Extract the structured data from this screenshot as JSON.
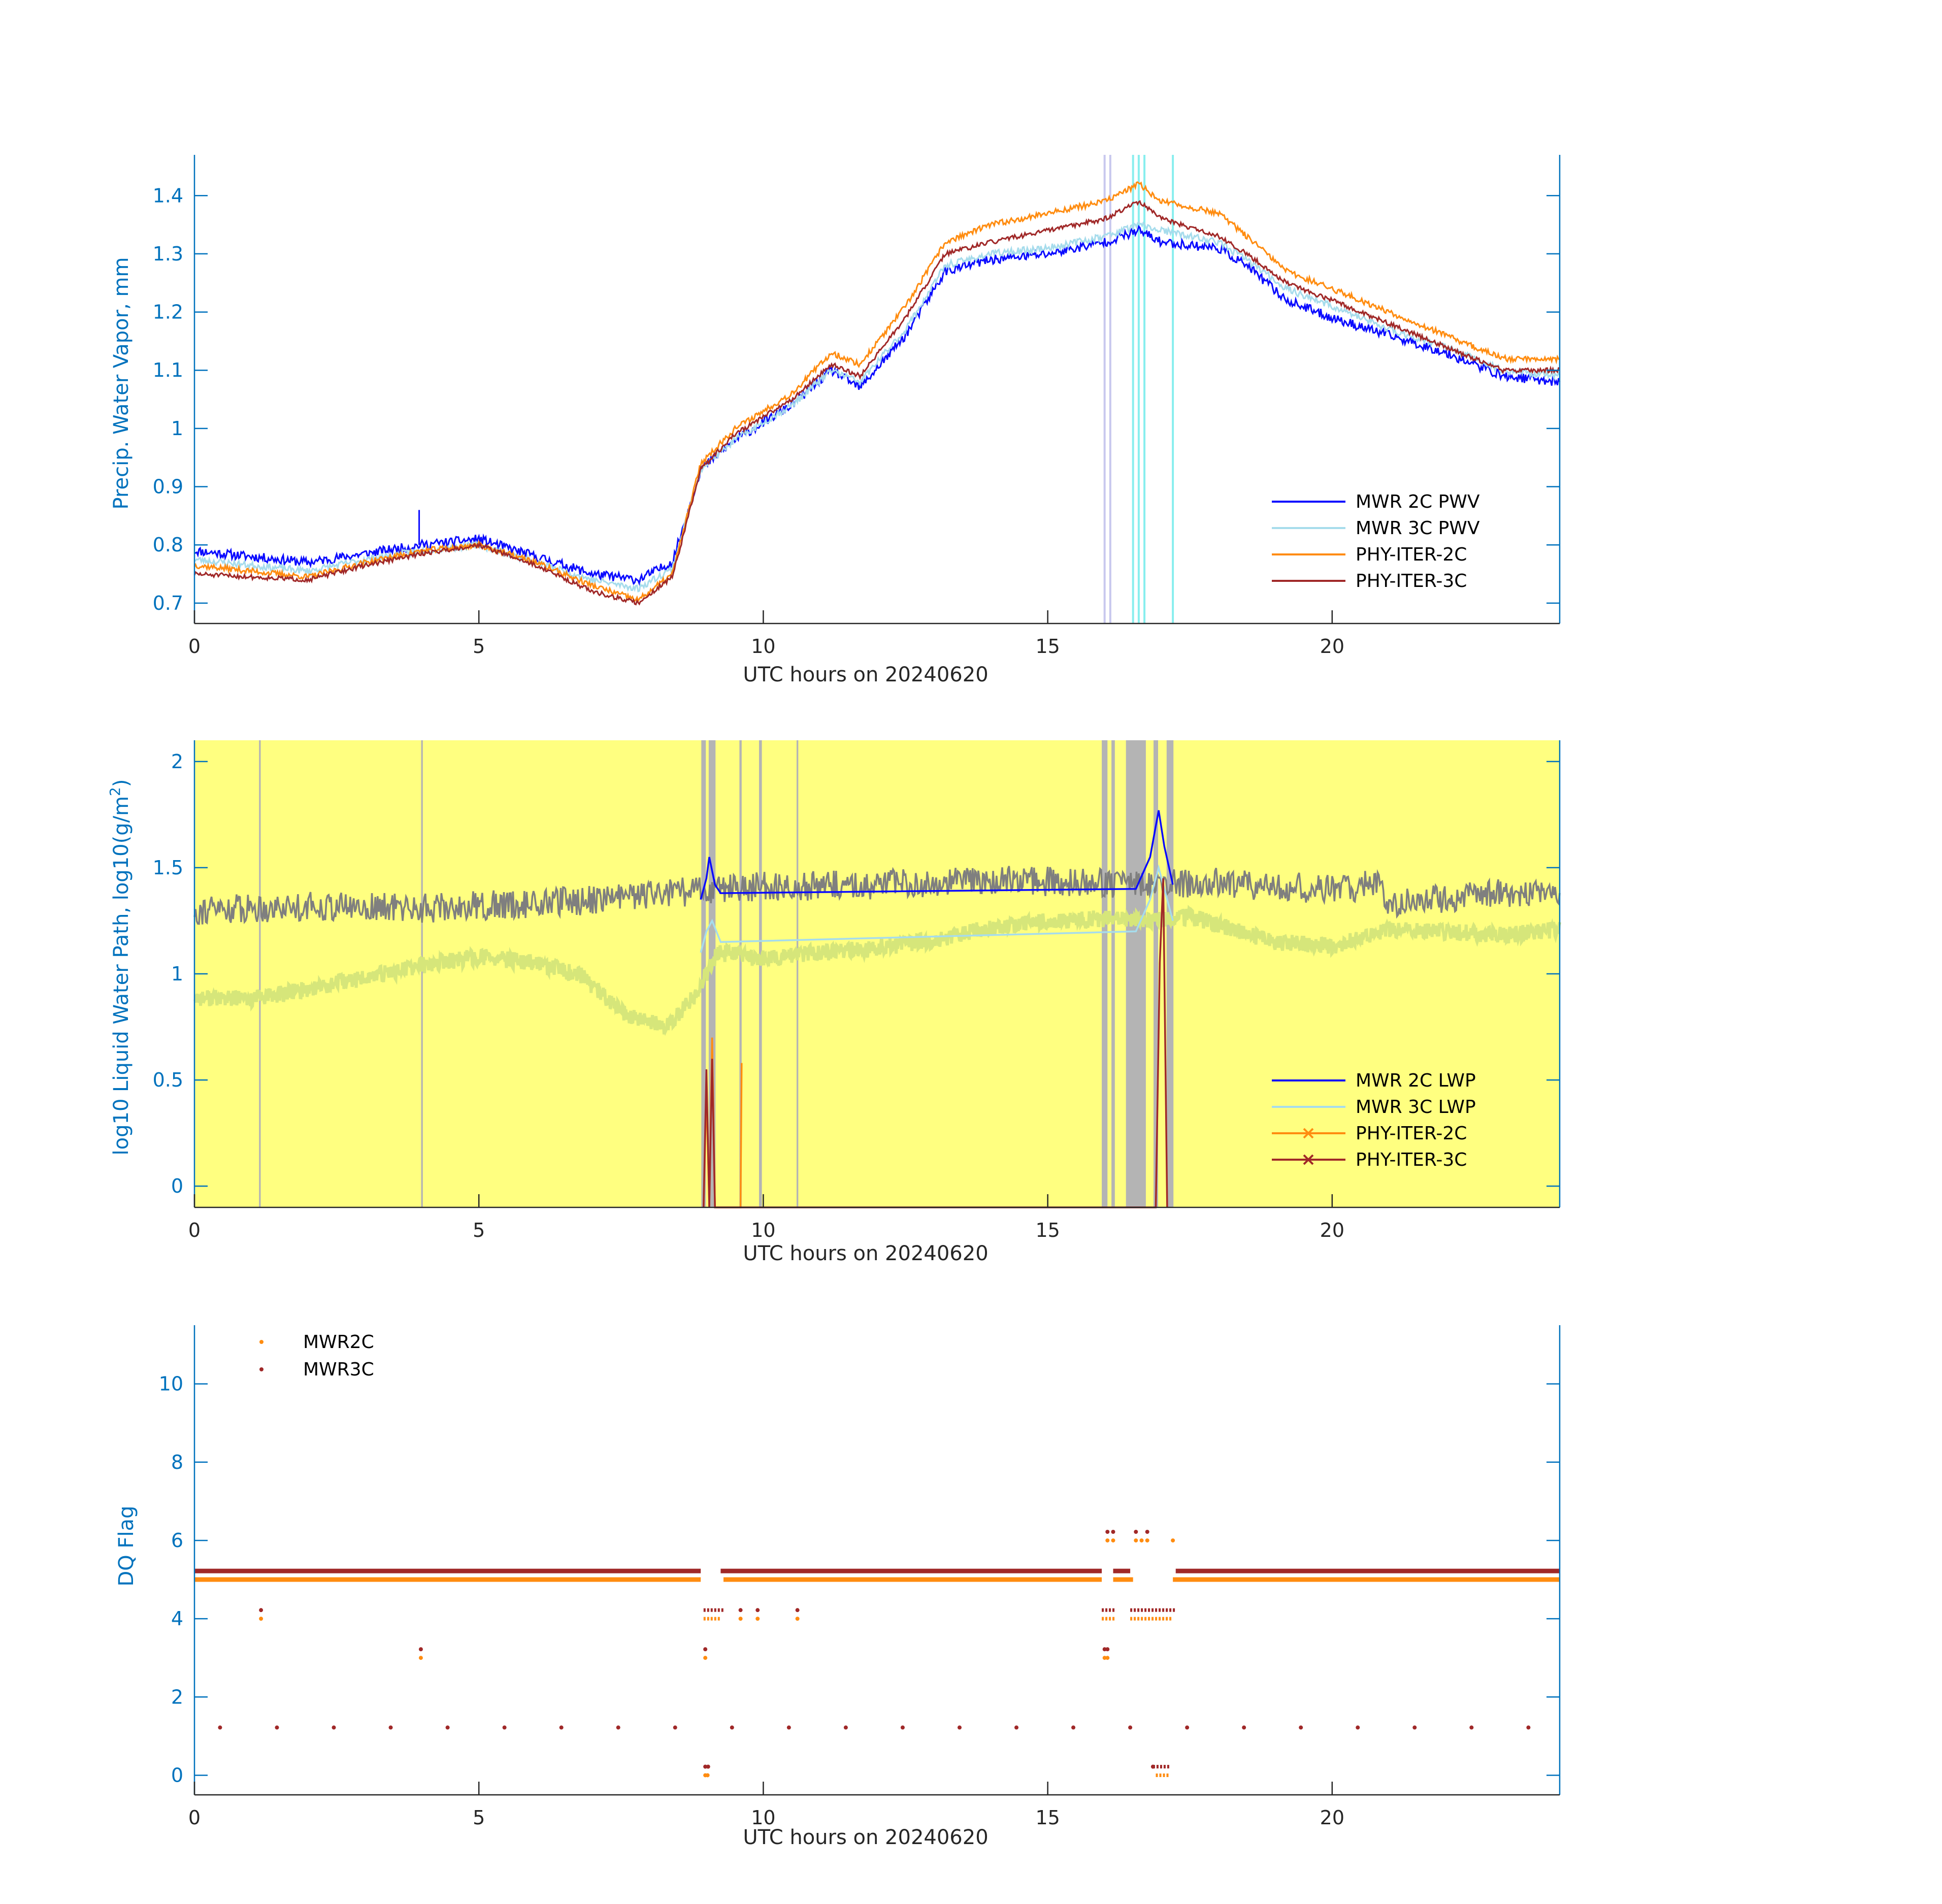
{
  "colors": {
    "mwr2c_pwv": "#0a0aff",
    "mwr3c_pwv": "#a6dcec",
    "phy2c": "#ff8c10",
    "phy3c": "#a02828",
    "lwp_raw": "#7f7f7f",
    "lwp_smooth": "#d6e67a",
    "lwp_bg": "#ffff80",
    "flag_gray": "#b4b4b4",
    "flag_cyan": "#88eeee",
    "flag_lavender": "#c8c8ee",
    "axis": "#0072bd",
    "xaxis": "#262626"
  },
  "chart_data": [
    {
      "type": "line",
      "name_key": "pwv",
      "xlabel": "UTC hours on 20240620",
      "ylabel": "Precip. Water Vapor, mm",
      "xlim": [
        0,
        24
      ],
      "ylim": [
        0.665,
        1.47
      ],
      "xticks": [
        0,
        5,
        10,
        15,
        20
      ],
      "yticks": [
        0.7,
        0.8,
        0.9,
        1,
        1.1,
        1.2,
        1.3,
        1.4
      ],
      "ytick_labels": [
        "0.7",
        "0.8",
        "0.9",
        "1",
        "1.1",
        "1.2",
        "1.3",
        "1.4"
      ],
      "grid": false,
      "legend_position": "bottom-right",
      "vertical_flags": [
        {
          "x": 16.0,
          "color": "flag_lavender"
        },
        {
          "x": 16.1,
          "color": "flag_lavender"
        },
        {
          "x": 16.5,
          "color": "flag_cyan"
        },
        {
          "x": 16.6,
          "color": "flag_cyan"
        },
        {
          "x": 16.7,
          "color": "flag_cyan"
        },
        {
          "x": 17.2,
          "color": "flag_cyan"
        }
      ],
      "series": [
        {
          "name": "MWR 2C PWV",
          "color": "mwr2c_pwv",
          "noise": 0.008,
          "x": [
            0,
            1,
            2,
            3,
            4,
            5,
            6,
            7,
            7.8,
            8.4,
            8.9,
            9.5,
            10.5,
            11.2,
            11.7,
            12.5,
            13.2,
            14,
            15,
            16,
            16.6,
            17,
            18,
            18.5,
            19.2,
            20,
            21,
            22,
            23,
            24
          ],
          "y": [
            0.79,
            0.78,
            0.77,
            0.785,
            0.8,
            0.81,
            0.78,
            0.75,
            0.74,
            0.77,
            0.93,
            0.98,
            1.04,
            1.1,
            1.07,
            1.16,
            1.27,
            1.29,
            1.3,
            1.32,
            1.34,
            1.32,
            1.31,
            1.28,
            1.22,
            1.19,
            1.16,
            1.13,
            1.09,
            1.08
          ]
        },
        {
          "name": "MWR 3C PWV",
          "color": "mwr3c_pwv",
          "noise": 0.006,
          "x": [
            0,
            1,
            2,
            3,
            4,
            5,
            6,
            7,
            7.8,
            8.4,
            8.9,
            9.5,
            10.5,
            11.2,
            11.7,
            12.5,
            13.2,
            14,
            15,
            16,
            16.6,
            17,
            18,
            18.5,
            19.2,
            20,
            21,
            22,
            23,
            24
          ],
          "y": [
            0.775,
            0.765,
            0.755,
            0.775,
            0.79,
            0.8,
            0.77,
            0.74,
            0.725,
            0.76,
            0.93,
            0.98,
            1.04,
            1.1,
            1.08,
            1.17,
            1.28,
            1.3,
            1.31,
            1.33,
            1.35,
            1.34,
            1.32,
            1.29,
            1.24,
            1.21,
            1.17,
            1.14,
            1.1,
            1.09
          ]
        },
        {
          "name": "PHY-ITER-2C",
          "color": "phy2c",
          "noise": 0.005,
          "x": [
            0,
            1,
            2,
            3,
            4,
            5,
            6,
            7,
            7.8,
            8.4,
            8.9,
            9.5,
            10.5,
            11.2,
            11.7,
            12.5,
            13.2,
            14,
            15,
            16,
            16.6,
            17,
            18,
            18.5,
            19.2,
            20,
            21,
            22,
            23,
            24
          ],
          "y": [
            0.765,
            0.755,
            0.745,
            0.77,
            0.79,
            0.8,
            0.77,
            0.73,
            0.705,
            0.75,
            0.94,
            1.0,
            1.06,
            1.13,
            1.11,
            1.21,
            1.32,
            1.35,
            1.37,
            1.39,
            1.42,
            1.39,
            1.37,
            1.33,
            1.27,
            1.24,
            1.2,
            1.16,
            1.12,
            1.12
          ]
        },
        {
          "name": "PHY-ITER-3C",
          "color": "phy3c",
          "noise": 0.004,
          "x": [
            0,
            1,
            2,
            3,
            4,
            5,
            6,
            7,
            7.8,
            8.4,
            8.9,
            9.5,
            10.5,
            11.2,
            11.7,
            12.5,
            13.2,
            14,
            15,
            16,
            16.6,
            17,
            18,
            18.5,
            19.2,
            20,
            21,
            22,
            23,
            24
          ],
          "y": [
            0.75,
            0.745,
            0.74,
            0.765,
            0.785,
            0.8,
            0.765,
            0.72,
            0.7,
            0.745,
            0.93,
            0.99,
            1.05,
            1.11,
            1.09,
            1.19,
            1.3,
            1.32,
            1.34,
            1.36,
            1.39,
            1.36,
            1.33,
            1.3,
            1.25,
            1.22,
            1.18,
            1.14,
            1.1,
            1.1
          ]
        }
      ]
    },
    {
      "type": "line",
      "name_key": "lwp",
      "xlabel": "UTC hours on 20240620",
      "ylabel": "log10 Liquid Water Path, log10(g/m",
      "ylabel_sup": "2",
      "ylabel_tail": ")",
      "xlim": [
        0,
        24
      ],
      "ylim": [
        -0.1,
        2.1
      ],
      "xticks": [
        0,
        5,
        10,
        15,
        20
      ],
      "yticks": [
        0,
        0.5,
        1,
        1.5,
        2
      ],
      "ytick_labels": [
        "0",
        "0.5",
        "1",
        "1.5",
        "2"
      ],
      "grid": false,
      "legend_position": "bottom-right",
      "vertical_flags": [
        {
          "x": 1.15,
          "color": "flag_gray",
          "w": 0.03
        },
        {
          "x": 4.0,
          "color": "flag_gray",
          "w": 0.03
        },
        {
          "x": 8.95,
          "color": "flag_gray",
          "w": 0.08
        },
        {
          "x": 9.1,
          "color": "flag_gray",
          "w": 0.12
        },
        {
          "x": 9.6,
          "color": "flag_gray",
          "w": 0.04
        },
        {
          "x": 9.95,
          "color": "flag_gray",
          "w": 0.05
        },
        {
          "x": 10.6,
          "color": "flag_gray",
          "w": 0.03
        },
        {
          "x": 16.0,
          "color": "flag_gray",
          "w": 0.1
        },
        {
          "x": 16.15,
          "color": "flag_gray",
          "w": 0.06
        },
        {
          "x": 16.55,
          "color": "flag_gray",
          "w": 0.35
        },
        {
          "x": 16.9,
          "color": "flag_gray",
          "w": 0.08
        },
        {
          "x": 17.15,
          "color": "flag_gray",
          "w": 0.12
        }
      ],
      "series": [
        {
          "name": "MWR 2C LWP",
          "color": "mwr2c_pwv",
          "x": [
            8.9,
            9.0,
            9.05,
            9.15,
            9.25,
            16.55,
            16.8,
            16.95,
            17.05,
            17.2
          ],
          "y": [
            1.35,
            1.45,
            1.55,
            1.42,
            1.38,
            1.4,
            1.55,
            1.77,
            1.6,
            1.42
          ]
        },
        {
          "name": "MWR 3C LWP",
          "color": "mwr3c_pwv",
          "x": [
            8.9,
            9.0,
            9.1,
            9.25,
            16.55,
            16.8,
            16.95,
            17.05,
            17.2
          ],
          "y": [
            1.1,
            1.2,
            1.25,
            1.15,
            1.2,
            1.35,
            1.5,
            1.4,
            1.25
          ]
        },
        {
          "name": "PHY-ITER-2C",
          "color": "phy2c",
          "marker": "x",
          "x": [
            8.95,
            9.0,
            9.05,
            9.1,
            9.15,
            9.6,
            9.62
          ],
          "y": [
            -0.1,
            0.45,
            -0.1,
            0.7,
            -0.1,
            -0.1,
            0.58
          ]
        },
        {
          "name": "PHY-ITER-3C",
          "color": "phy3c",
          "marker": "x",
          "x": [
            8.95,
            9.0,
            9.05,
            9.1,
            9.15,
            16.9,
            16.97,
            17.03,
            17.1
          ],
          "y": [
            -0.1,
            0.55,
            -0.1,
            0.6,
            -0.1,
            -0.1,
            1.05,
            1.45,
            -0.1
          ]
        }
      ],
      "background_series": [
        {
          "role": "raw",
          "color": "lwp_raw",
          "noise": 0.07,
          "x": [
            0,
            2,
            4,
            6,
            7.5,
            8.5,
            9,
            10,
            12,
            14,
            16,
            17,
            18,
            19,
            20,
            20.8,
            21,
            22,
            23,
            24
          ],
          "y": [
            1.3,
            1.32,
            1.31,
            1.33,
            1.36,
            1.38,
            1.4,
            1.41,
            1.42,
            1.44,
            1.43,
            1.42,
            1.43,
            1.41,
            1.4,
            1.42,
            1.33,
            1.36,
            1.38,
            1.39
          ]
        },
        {
          "role": "smooth",
          "color": "lwp_smooth",
          "noise": 0.04,
          "x": [
            0,
            1,
            2,
            3,
            4,
            5,
            6,
            6.8,
            7.6,
            8.3,
            8.8,
            9.2,
            10,
            11,
            12,
            13,
            14,
            15,
            16,
            17,
            17.5,
            18,
            19,
            20,
            21,
            22,
            23,
            24
          ],
          "y": [
            0.89,
            0.88,
            0.93,
            0.98,
            1.04,
            1.08,
            1.05,
            0.99,
            0.8,
            0.75,
            0.9,
            1.1,
            1.07,
            1.1,
            1.12,
            1.16,
            1.22,
            1.25,
            1.26,
            1.25,
            1.27,
            1.23,
            1.15,
            1.13,
            1.21,
            1.2,
            1.18,
            1.21
          ]
        }
      ]
    },
    {
      "type": "scatter",
      "name_key": "dq",
      "xlabel": "UTC hours on 20240620",
      "ylabel": "DQ Flag",
      "xlim": [
        0,
        24
      ],
      "ylim": [
        -0.5,
        11.5
      ],
      "xticks": [
        0,
        5,
        10,
        15,
        20
      ],
      "yticks": [
        0,
        2,
        4,
        6,
        8,
        10
      ],
      "ytick_labels": [
        "0",
        "2",
        "4",
        "6",
        "8",
        "10"
      ],
      "grid": false,
      "legend_position": "top-left",
      "series": [
        {
          "name": "MWR2C",
          "color": "phy2c",
          "offset": 0.0,
          "bands": [
            {
              "y": 5,
              "segments": [
                [
                  0,
                  8.9
                ],
                [
                  9.3,
                  15.95
                ],
                [
                  16.15,
                  16.5
                ],
                [
                  17.2,
                  24
                ]
              ]
            }
          ],
          "points": [
            [
              1.17,
              4
            ],
            [
              3.98,
              3
            ],
            [
              8.98,
              3
            ],
            [
              8.98,
              0
            ],
            [
              9.02,
              0
            ],
            [
              9.6,
              4
            ],
            [
              9.9,
              4
            ],
            [
              10.6,
              4
            ],
            [
              17.2,
              6
            ],
            [
              16.05,
              6
            ],
            [
              16.15,
              6
            ],
            [
              16.55,
              6
            ],
            [
              16.65,
              6
            ],
            [
              16.75,
              6
            ],
            [
              16.0,
              3
            ],
            [
              16.05,
              3
            ]
          ],
          "point_ranges": [
            {
              "y": 4,
              "segments": [
                [
                  8.95,
                  9.25
                ],
                [
                  15.95,
                  16.2
                ],
                [
                  16.45,
                  17.2
                ]
              ]
            },
            {
              "y": 0,
              "segments": [
                [
                  16.9,
                  17.15
                ]
              ]
            }
          ]
        },
        {
          "name": "MWR3C",
          "color": "phy3c",
          "offset": 0.22,
          "bands": [
            {
              "y": 5,
              "segments": [
                [
                  0,
                  8.9
                ],
                [
                  9.25,
                  15.95
                ],
                [
                  16.15,
                  16.45
                ],
                [
                  17.25,
                  24
                ]
              ]
            }
          ],
          "points": [
            [
              1.17,
              4
            ],
            [
              3.98,
              3
            ],
            [
              8.98,
              3
            ],
            [
              8.98,
              0
            ],
            [
              9.03,
              0
            ],
            [
              9.6,
              4
            ],
            [
              9.9,
              4
            ],
            [
              10.6,
              4
            ],
            [
              16.05,
              6
            ],
            [
              16.15,
              6
            ],
            [
              16.55,
              6
            ],
            [
              16.75,
              6
            ],
            [
              16.0,
              3
            ],
            [
              16.05,
              3
            ],
            [
              16.85,
              0
            ]
          ],
          "point_ranges": [
            {
              "y": 4,
              "segments": [
                [
                  8.95,
                  9.3
                ],
                [
                  15.95,
                  16.2
                ],
                [
                  16.45,
                  17.25
                ]
              ]
            },
            {
              "y": 0,
              "segments": [
                [
                  16.85,
                  17.15
                ]
              ]
            }
          ],
          "periodic": {
            "y": 1.0,
            "start": 0.45,
            "step": 1.0,
            "end": 23.5
          }
        }
      ]
    }
  ]
}
